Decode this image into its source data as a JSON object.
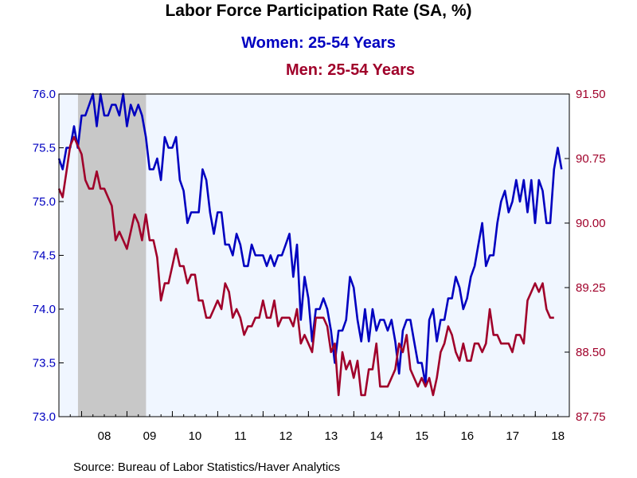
{
  "title": "Labor Force Participation Rate (SA, %)",
  "source": "Source:  Bureau of Labor Statistics/Haver Analytics",
  "colors": {
    "women": "#0000c0",
    "men": "#a0002a",
    "plot_bg": "#f0f6ff",
    "recession": "#c8c8c8"
  },
  "chart_data": {
    "type": "line",
    "x_tick_labels": [
      "08",
      "09",
      "10",
      "11",
      "12",
      "13",
      "14",
      "15",
      "16",
      "17",
      "18"
    ],
    "x_range": [
      2007.5,
      2018.75
    ],
    "recession": [
      2007.92,
      2009.42
    ],
    "axes": {
      "left": {
        "ylim": [
          73.0,
          76.0
        ],
        "ticks": [
          "73.0",
          "73.5",
          "74.0",
          "74.5",
          "75.0",
          "75.5",
          "76.0"
        ],
        "tick_values": [
          73.0,
          73.5,
          74.0,
          74.5,
          75.0,
          75.5,
          76.0
        ]
      },
      "right": {
        "ylim": [
          87.75,
          91.5
        ],
        "ticks": [
          "87.75",
          "88.50",
          "89.25",
          "90.00",
          "90.75",
          "91.50"
        ],
        "tick_values": [
          87.75,
          88.5,
          89.25,
          90.0,
          90.75,
          91.5
        ]
      }
    },
    "series": [
      {
        "name": "Women: 25-54 Years",
        "axis": "left",
        "start": 2007.5,
        "step": 0.0833,
        "values": [
          75.4,
          75.3,
          75.5,
          75.5,
          75.7,
          75.5,
          75.8,
          75.8,
          75.9,
          76.0,
          75.7,
          76.0,
          75.8,
          75.8,
          75.9,
          75.9,
          75.8,
          76.0,
          75.7,
          75.9,
          75.8,
          75.9,
          75.8,
          75.6,
          75.3,
          75.3,
          75.4,
          75.2,
          75.6,
          75.5,
          75.5,
          75.6,
          75.2,
          75.1,
          74.8,
          74.9,
          74.9,
          74.9,
          75.3,
          75.2,
          74.9,
          74.7,
          74.9,
          74.9,
          74.6,
          74.6,
          74.5,
          74.7,
          74.6,
          74.4,
          74.4,
          74.6,
          74.5,
          74.5,
          74.5,
          74.4,
          74.5,
          74.4,
          74.5,
          74.5,
          74.6,
          74.7,
          74.3,
          74.6,
          73.9,
          74.3,
          74.1,
          73.7,
          74.0,
          74.0,
          74.1,
          74.0,
          73.8,
          73.5,
          73.8,
          73.8,
          73.9,
          74.3,
          74.2,
          73.9,
          73.7,
          74.0,
          73.7,
          74.0,
          73.8,
          73.9,
          73.9,
          73.8,
          73.9,
          73.7,
          73.4,
          73.8,
          73.9,
          73.9,
          73.7,
          73.5,
          73.5,
          73.3,
          73.9,
          74.0,
          73.7,
          73.9,
          73.9,
          74.1,
          74.1,
          74.3,
          74.2,
          74.0,
          74.1,
          74.3,
          74.4,
          74.6,
          74.8,
          74.4,
          74.5,
          74.5,
          74.8,
          75.0,
          75.1,
          74.9,
          75.0,
          75.2,
          75.0,
          75.2,
          74.9,
          75.2,
          74.8,
          75.2,
          75.1,
          74.8,
          74.8,
          75.3,
          75.5,
          75.3
        ]
      },
      {
        "name": "Men: 25-54 Years",
        "axis": "right",
        "start": 2007.5,
        "step": 0.0833,
        "values": [
          90.4,
          90.3,
          90.6,
          90.9,
          91.0,
          90.9,
          90.8,
          90.5,
          90.4,
          90.4,
          90.6,
          90.4,
          90.4,
          90.3,
          90.2,
          89.8,
          89.9,
          89.8,
          89.7,
          89.9,
          90.1,
          90.0,
          89.8,
          90.1,
          89.8,
          89.8,
          89.6,
          89.1,
          89.3,
          89.3,
          89.5,
          89.7,
          89.5,
          89.5,
          89.3,
          89.4,
          89.4,
          89.1,
          89.1,
          88.9,
          88.9,
          89.0,
          89.1,
          89.0,
          89.3,
          89.2,
          88.9,
          89.0,
          88.9,
          88.7,
          88.8,
          88.8,
          88.9,
          88.9,
          89.1,
          88.9,
          88.9,
          89.1,
          88.8,
          88.9,
          88.9,
          88.9,
          88.8,
          89.0,
          88.6,
          88.7,
          88.6,
          88.5,
          88.9,
          88.9,
          88.9,
          88.8,
          88.5,
          88.6,
          88.0,
          88.5,
          88.3,
          88.4,
          88.2,
          88.4,
          88.0,
          88.0,
          88.3,
          88.3,
          88.6,
          88.1,
          88.1,
          88.1,
          88.2,
          88.3,
          88.6,
          88.5,
          88.7,
          88.3,
          88.2,
          88.1,
          88.2,
          88.1,
          88.2,
          88.0,
          88.2,
          88.5,
          88.6,
          88.8,
          88.7,
          88.5,
          88.4,
          88.6,
          88.4,
          88.4,
          88.6,
          88.6,
          88.5,
          88.6,
          89.0,
          88.7,
          88.7,
          88.6,
          88.6,
          88.6,
          88.5,
          88.7,
          88.7,
          88.6,
          89.1,
          89.2,
          89.3,
          89.2,
          89.3,
          89.0,
          88.9,
          88.9
        ]
      }
    ],
    "grid": false,
    "legend": "top-center"
  }
}
